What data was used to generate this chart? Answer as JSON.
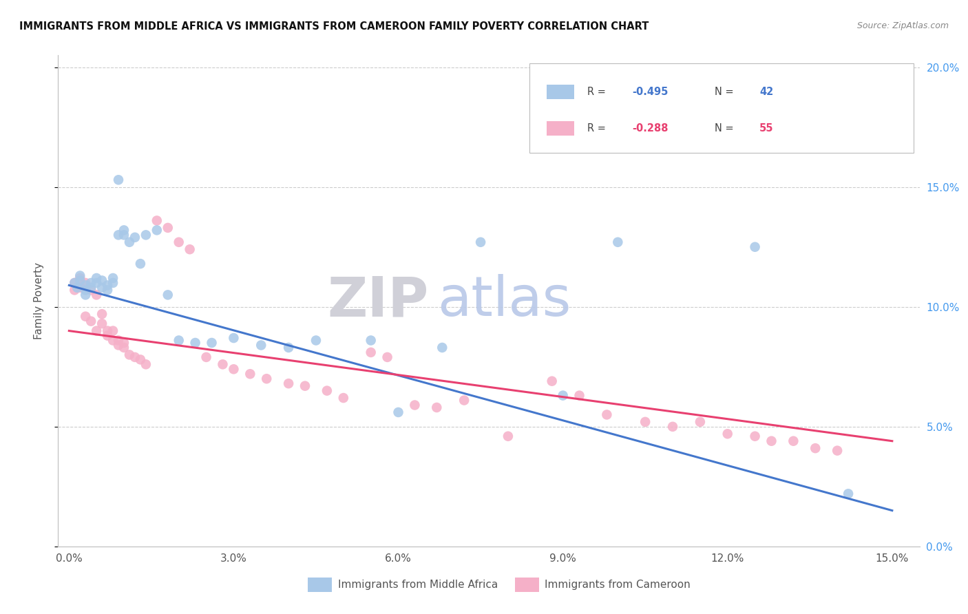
{
  "title": "IMMIGRANTS FROM MIDDLE AFRICA VS IMMIGRANTS FROM CAMEROON FAMILY POVERTY CORRELATION CHART",
  "source": "Source: ZipAtlas.com",
  "ylabel": "Family Poverty",
  "watermark_zip": "ZIP",
  "watermark_atlas": "atlas",
  "xlim": [
    -0.002,
    0.155
  ],
  "ylim": [
    0.0,
    0.205
  ],
  "xticks": [
    0.0,
    0.03,
    0.06,
    0.09,
    0.12,
    0.15
  ],
  "yticks": [
    0.0,
    0.05,
    0.1,
    0.15,
    0.2
  ],
  "xticklabels": [
    "0.0%",
    "3.0%",
    "6.0%",
    "9.0%",
    "12.0%",
    "15.0%"
  ],
  "yticklabels_right": [
    "0.0%",
    "5.0%",
    "10.0%",
    "15.0%",
    "20.0%"
  ],
  "blue_label": "Immigrants from Middle Africa",
  "pink_label": "Immigrants from Cameroon",
  "blue_R_text": "-0.495",
  "blue_N_text": "42",
  "pink_R_text": "-0.288",
  "pink_N_text": "55",
  "blue_color": "#A8C8E8",
  "pink_color": "#F5B0C8",
  "blue_line_color": "#4477CC",
  "pink_line_color": "#E84070",
  "right_axis_color": "#4499EE",
  "blue_x": [
    0.001,
    0.0015,
    0.002,
    0.002,
    0.003,
    0.003,
    0.003,
    0.004,
    0.004,
    0.005,
    0.005,
    0.006,
    0.006,
    0.007,
    0.007,
    0.008,
    0.008,
    0.009,
    0.009,
    0.01,
    0.01,
    0.011,
    0.012,
    0.013,
    0.014,
    0.016,
    0.018,
    0.02,
    0.023,
    0.026,
    0.03,
    0.035,
    0.04,
    0.045,
    0.055,
    0.06,
    0.068,
    0.075,
    0.09,
    0.1,
    0.125,
    0.142
  ],
  "blue_y": [
    0.11,
    0.108,
    0.111,
    0.113,
    0.109,
    0.107,
    0.105,
    0.11,
    0.108,
    0.112,
    0.11,
    0.111,
    0.108,
    0.109,
    0.107,
    0.112,
    0.11,
    0.153,
    0.13,
    0.132,
    0.13,
    0.127,
    0.129,
    0.118,
    0.13,
    0.132,
    0.105,
    0.086,
    0.085,
    0.085,
    0.087,
    0.084,
    0.083,
    0.086,
    0.086,
    0.056,
    0.083,
    0.127,
    0.063,
    0.127,
    0.125,
    0.022
  ],
  "pink_x": [
    0.001,
    0.001,
    0.002,
    0.002,
    0.003,
    0.003,
    0.004,
    0.004,
    0.005,
    0.005,
    0.006,
    0.006,
    0.007,
    0.007,
    0.008,
    0.008,
    0.009,
    0.009,
    0.01,
    0.01,
    0.011,
    0.012,
    0.013,
    0.014,
    0.016,
    0.018,
    0.02,
    0.022,
    0.025,
    0.028,
    0.03,
    0.033,
    0.036,
    0.04,
    0.043,
    0.047,
    0.05,
    0.055,
    0.058,
    0.063,
    0.067,
    0.072,
    0.08,
    0.088,
    0.093,
    0.098,
    0.105,
    0.11,
    0.115,
    0.12,
    0.125,
    0.128,
    0.132,
    0.136,
    0.14
  ],
  "pink_y": [
    0.11,
    0.107,
    0.112,
    0.108,
    0.11,
    0.096,
    0.094,
    0.107,
    0.105,
    0.09,
    0.097,
    0.093,
    0.09,
    0.088,
    0.09,
    0.086,
    0.084,
    0.086,
    0.085,
    0.083,
    0.08,
    0.079,
    0.078,
    0.076,
    0.136,
    0.133,
    0.127,
    0.124,
    0.079,
    0.076,
    0.074,
    0.072,
    0.07,
    0.068,
    0.067,
    0.065,
    0.062,
    0.081,
    0.079,
    0.059,
    0.058,
    0.061,
    0.046,
    0.069,
    0.063,
    0.055,
    0.052,
    0.05,
    0.052,
    0.047,
    0.046,
    0.044,
    0.044,
    0.041,
    0.04
  ],
  "blue_line_x0": 0.0,
  "blue_line_y0": 0.109,
  "blue_line_x1": 0.15,
  "blue_line_y1": 0.015,
  "pink_line_x0": 0.0,
  "pink_line_y0": 0.09,
  "pink_line_x1": 0.15,
  "pink_line_y1": 0.044
}
